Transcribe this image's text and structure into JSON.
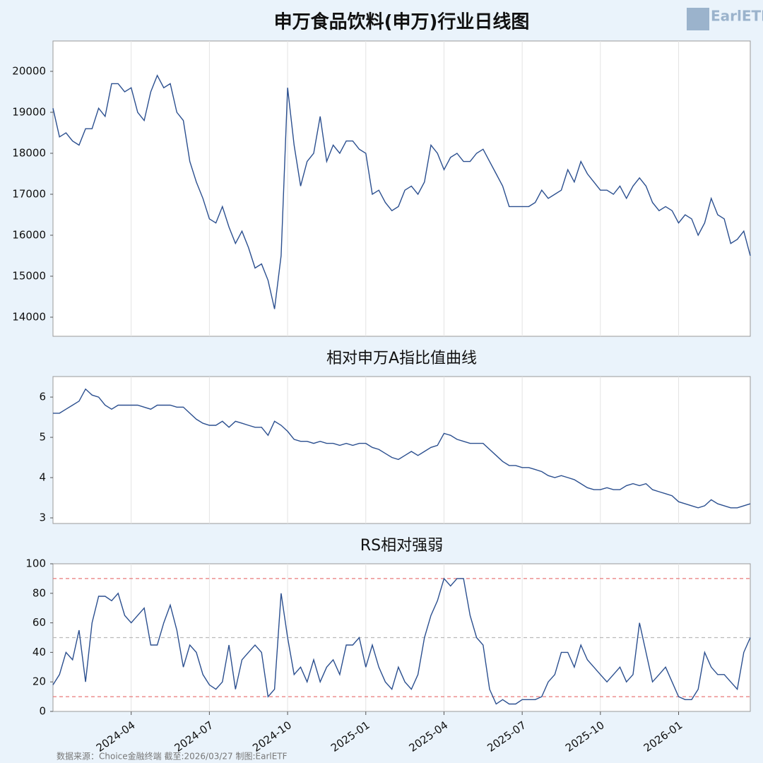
{
  "chart_data": [
    {
      "type": "line",
      "title": "申万食品饮料(申万)行业日线图",
      "color": "#2b4f8f",
      "ylim": [
        13534,
        20741
      ],
      "yticks": [
        14000,
        15000,
        16000,
        17000,
        18000,
        19000,
        20000
      ],
      "values": [
        19100,
        18400,
        18500,
        18300,
        18200,
        18600,
        18600,
        19100,
        18900,
        19700,
        19700,
        19500,
        19600,
        19000,
        18800,
        19500,
        19900,
        19600,
        19700,
        19000,
        18800,
        17800,
        17300,
        16900,
        16400,
        16300,
        16700,
        16200,
        15800,
        16100,
        15700,
        15200,
        15300,
        14900,
        14200,
        15500,
        19600,
        18200,
        17200,
        17800,
        18000,
        18900,
        17800,
        18200,
        18000,
        18300,
        18300,
        18100,
        18000,
        17000,
        17100,
        16800,
        16600,
        16700,
        17100,
        17200,
        17000,
        17300,
        18200,
        18000,
        17600,
        17900,
        18000,
        17800,
        17800,
        18000,
        18100,
        17800,
        17500,
        17200,
        16700,
        16700,
        16700,
        16700,
        16800,
        17100,
        16900,
        17000,
        17100,
        17600,
        17300,
        17800,
        17500,
        17300,
        17100,
        17100,
        17000,
        17200,
        16900,
        17200,
        17400,
        17200,
        16800,
        16600,
        16700,
        16600,
        16300,
        16500,
        16400,
        16000,
        16300,
        16900,
        16500,
        16400,
        15800,
        15900,
        16100,
        15500
      ]
    },
    {
      "type": "line",
      "title": "相对申万A指比值曲线",
      "color": "#2b4f8f",
      "ylim": [
        2.86,
        6.51
      ],
      "yticks": [
        3,
        4,
        5,
        6
      ],
      "values": [
        5.6,
        5.6,
        5.7,
        5.8,
        5.9,
        6.2,
        6.05,
        6.0,
        5.8,
        5.7,
        5.8,
        5.8,
        5.8,
        5.8,
        5.75,
        5.7,
        5.8,
        5.8,
        5.8,
        5.75,
        5.75,
        5.6,
        5.45,
        5.35,
        5.3,
        5.3,
        5.4,
        5.25,
        5.4,
        5.35,
        5.3,
        5.25,
        5.25,
        5.05,
        5.4,
        5.3,
        5.15,
        4.95,
        4.9,
        4.9,
        4.85,
        4.9,
        4.85,
        4.85,
        4.8,
        4.85,
        4.8,
        4.85,
        4.85,
        4.75,
        4.7,
        4.6,
        4.5,
        4.45,
        4.55,
        4.65,
        4.55,
        4.65,
        4.75,
        4.8,
        5.1,
        5.05,
        4.95,
        4.9,
        4.85,
        4.85,
        4.85,
        4.7,
        4.55,
        4.4,
        4.3,
        4.3,
        4.25,
        4.25,
        4.2,
        4.15,
        4.05,
        4.0,
        4.05,
        4.0,
        3.95,
        3.85,
        3.75,
        3.7,
        3.7,
        3.75,
        3.7,
        3.7,
        3.8,
        3.85,
        3.8,
        3.85,
        3.7,
        3.65,
        3.6,
        3.55,
        3.4,
        3.35,
        3.3,
        3.25,
        3.3,
        3.45,
        3.35,
        3.3,
        3.25,
        3.25,
        3.3,
        3.35
      ]
    },
    {
      "type": "line",
      "title": "RS相对强弱",
      "color": "#2b4f8f",
      "ylim": [
        0,
        100
      ],
      "yticks": [
        0,
        20,
        40,
        60,
        80,
        100
      ],
      "reference_lines": [
        {
          "value": 90,
          "color": "#e87a7a"
        },
        {
          "value": 50,
          "color": "#bbbbbb"
        },
        {
          "value": 10,
          "color": "#e87a7a"
        }
      ],
      "categories": [
        null,
        null,
        null,
        null,
        null,
        null,
        null,
        null,
        null,
        null,
        null,
        null,
        "2024-04",
        null,
        null,
        null,
        null,
        null,
        null,
        null,
        null,
        null,
        null,
        null,
        "2024-07",
        null,
        null,
        null,
        null,
        null,
        null,
        null,
        null,
        null,
        null,
        null,
        "2024-10",
        null,
        null,
        null,
        null,
        null,
        null,
        null,
        null,
        null,
        null,
        null,
        "2025-01",
        null,
        null,
        null,
        null,
        null,
        null,
        null,
        null,
        null,
        null,
        null,
        "2025-04",
        null,
        null,
        null,
        null,
        null,
        null,
        null,
        null,
        null,
        null,
        null,
        "2025-07",
        null,
        null,
        null,
        null,
        null,
        null,
        null,
        null,
        null,
        null,
        null,
        "2025-10",
        null,
        null,
        null,
        null,
        null,
        null,
        null,
        null,
        null,
        null,
        null,
        "2026-01",
        null,
        null,
        null,
        null,
        null,
        null,
        null,
        null,
        null,
        null,
        null
      ],
      "values": [
        18,
        25,
        40,
        35,
        55,
        20,
        60,
        78,
        78,
        75,
        80,
        65,
        60,
        65,
        70,
        45,
        45,
        60,
        72,
        55,
        30,
        45,
        40,
        25,
        18,
        15,
        20,
        45,
        15,
        35,
        40,
        45,
        40,
        10,
        15,
        80,
        50,
        25,
        30,
        20,
        35,
        20,
        30,
        35,
        25,
        45,
        45,
        50,
        30,
        45,
        30,
        20,
        15,
        30,
        20,
        15,
        25,
        50,
        65,
        75,
        90,
        85,
        90,
        90,
        65,
        50,
        45,
        15,
        5,
        8,
        5,
        5,
        8,
        8,
        8,
        10,
        20,
        25,
        40,
        40,
        30,
        45,
        35,
        30,
        25,
        20,
        25,
        30,
        20,
        25,
        60,
        40,
        20,
        25,
        30,
        20,
        10,
        8,
        8,
        15,
        40,
        30,
        25,
        25,
        20,
        15,
        40,
        50
      ]
    }
  ],
  "footer": "数据来源：Choice金融终端 截至:2026/03/27 制图:EarlETF",
  "logo": "EarlETF"
}
